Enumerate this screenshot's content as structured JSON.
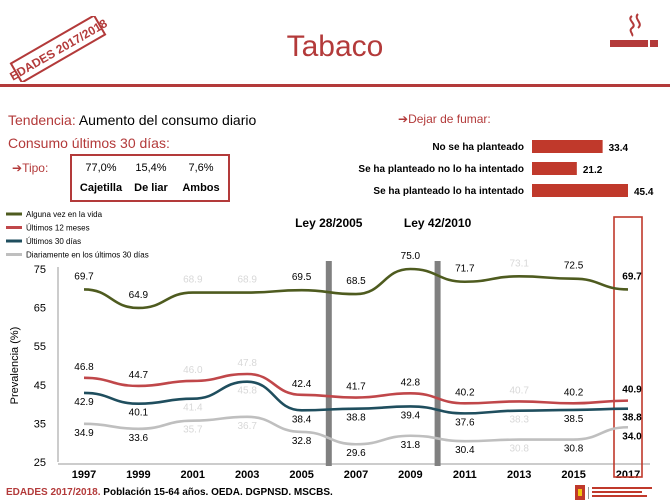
{
  "stamp": "EDADES 2017/2018",
  "title": "Tabaco",
  "trend": {
    "label": "Tendencia:",
    "value": "Aumento del consumo diario"
  },
  "consumo_label": "Consumo últimos 30 días:",
  "tipo": {
    "label": "Tipo:",
    "items": [
      {
        "pct": "77,0%",
        "label": "Cajetilla"
      },
      {
        "pct": "15,4%",
        "label": "De liar"
      },
      {
        "pct": "7,6%",
        "label": "Ambos"
      }
    ]
  },
  "footer": {
    "highlight": "EDADES 2017/2018.",
    "text": "Población 15-64 años. OEDA. DGPNSD. MSCBS."
  },
  "chart_data": [
    {
      "type": "bar",
      "title": "Dejar de fumar:",
      "orientation": "horizontal",
      "color": "#c0392b",
      "categories": [
        "No se ha planteado",
        "Se ha planteado no lo ha intentado",
        "Se ha planteado lo ha intentado"
      ],
      "values": [
        33.4,
        21.2,
        45.4
      ],
      "value_labels": [
        "33.4",
        "21.2",
        "45.4"
      ]
    },
    {
      "type": "line",
      "ylabel": "Prevalencia (%)",
      "ylim": [
        25,
        75
      ],
      "yticks": [
        25,
        35,
        45,
        55,
        65,
        75
      ],
      "x": [
        "1997",
        "1999",
        "2001",
        "2003",
        "2005",
        "2007",
        "2009",
        "2011",
        "2013",
        "2015",
        "2017"
      ],
      "legend_position": "top-left",
      "annotations": [
        {
          "text": "Ley 28/2005",
          "between": [
            "2005",
            "2007"
          ]
        },
        {
          "text": "Ley 42/2010",
          "between": [
            "2009",
            "2011"
          ]
        }
      ],
      "series": [
        {
          "name": "Alguna vez en la vida",
          "color": "#4e5b1f",
          "values": [
            69.7,
            64.9,
            68.9,
            68.9,
            69.5,
            68.5,
            75.0,
            71.7,
            73.1,
            72.5,
            69.7
          ],
          "labels": [
            "69.7",
            "64.9",
            "68.9",
            "68.9",
            "69.5",
            "68.5",
            "75.0",
            "71.7",
            "73.1",
            "72.5",
            "69.7"
          ]
        },
        {
          "name": "Últimos 12 meses",
          "color": "#c0474a",
          "values": [
            46.8,
            44.7,
            46.0,
            47.8,
            42.4,
            41.7,
            42.8,
            40.2,
            40.7,
            40.2,
            40.9
          ],
          "labels": [
            "46.8",
            "44.7",
            "46.0",
            "47.8",
            "42.4",
            "41.7",
            "42.8",
            "40.2",
            "40.7",
            "40.2",
            "40.9"
          ]
        },
        {
          "name": "Últimos 30 días",
          "color": "#1f4e5e",
          "values": [
            42.9,
            40.1,
            41.4,
            45.8,
            38.4,
            38.8,
            39.4,
            37.6,
            38.3,
            38.5,
            38.8
          ],
          "labels": [
            "42.9",
            "40.1",
            "41.4",
            "45.8",
            "38.4",
            "38.8",
            "39.4",
            "37.6",
            "38.3",
            "38.5",
            "38.8"
          ]
        },
        {
          "name": "Diariamente en los últimos 30 días",
          "color": "#bfbfbf",
          "values": [
            34.9,
            33.6,
            35.7,
            36.7,
            32.8,
            29.6,
            31.8,
            30.4,
            30.8,
            30.8,
            34.0
          ],
          "labels": [
            "34.9",
            "33.6",
            "35.7",
            "36.7",
            "32.8",
            "29.6",
            "31.8",
            "30.4",
            "30.8",
            "30.8",
            "34.0"
          ]
        }
      ]
    }
  ]
}
